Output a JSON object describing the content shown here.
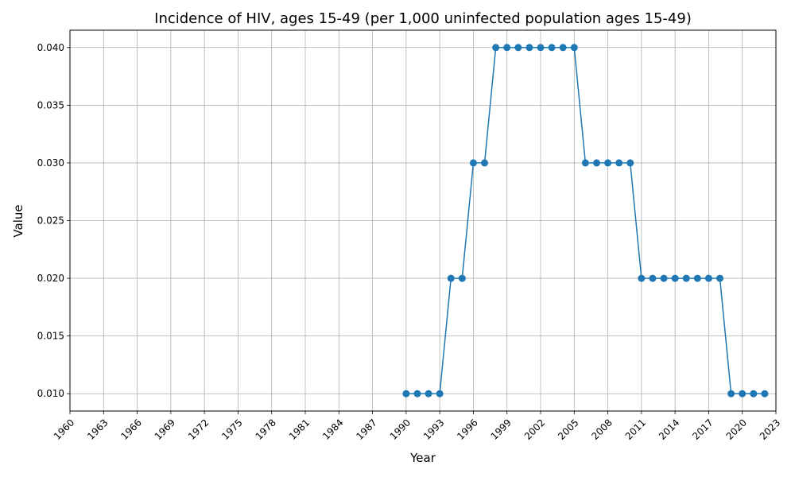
{
  "chart_data": {
    "type": "line",
    "title": "Incidence of HIV, ages 15-49 (per 1,000 uninfected population ages 15-49)",
    "xlabel": "Year",
    "ylabel": "Value",
    "xlim": [
      1960,
      2023
    ],
    "ylim": [
      0.0085,
      0.0415
    ],
    "grid": true,
    "color": "#1f77b4",
    "x_ticks": [
      "1960",
      "1963",
      "1966",
      "1969",
      "1972",
      "1975",
      "1978",
      "1981",
      "1984",
      "1987",
      "1990",
      "1993",
      "1996",
      "1999",
      "2002",
      "2005",
      "2008",
      "2011",
      "2014",
      "2017",
      "2020",
      "2023"
    ],
    "y_ticks": [
      "0.010",
      "0.015",
      "0.020",
      "0.025",
      "0.030",
      "0.035",
      "0.040"
    ],
    "series": [
      {
        "x": [
          1990,
          1991,
          1992,
          1993,
          1994,
          1995,
          1996,
          1997,
          1998,
          1999,
          2000,
          2001,
          2002,
          2003,
          2004,
          2005,
          2006,
          2007,
          2008,
          2009,
          2010,
          2011,
          2012,
          2013,
          2014,
          2015,
          2016,
          2017,
          2018,
          2019,
          2020,
          2021,
          2022
        ],
        "y": [
          0.01,
          0.01,
          0.01,
          0.01,
          0.02,
          0.02,
          0.03,
          0.03,
          0.04,
          0.04,
          0.04,
          0.04,
          0.04,
          0.04,
          0.04,
          0.04,
          0.03,
          0.03,
          0.03,
          0.03,
          0.03,
          0.02,
          0.02,
          0.02,
          0.02,
          0.02,
          0.02,
          0.02,
          0.02,
          0.01,
          0.01,
          0.01,
          0.01
        ]
      }
    ]
  }
}
